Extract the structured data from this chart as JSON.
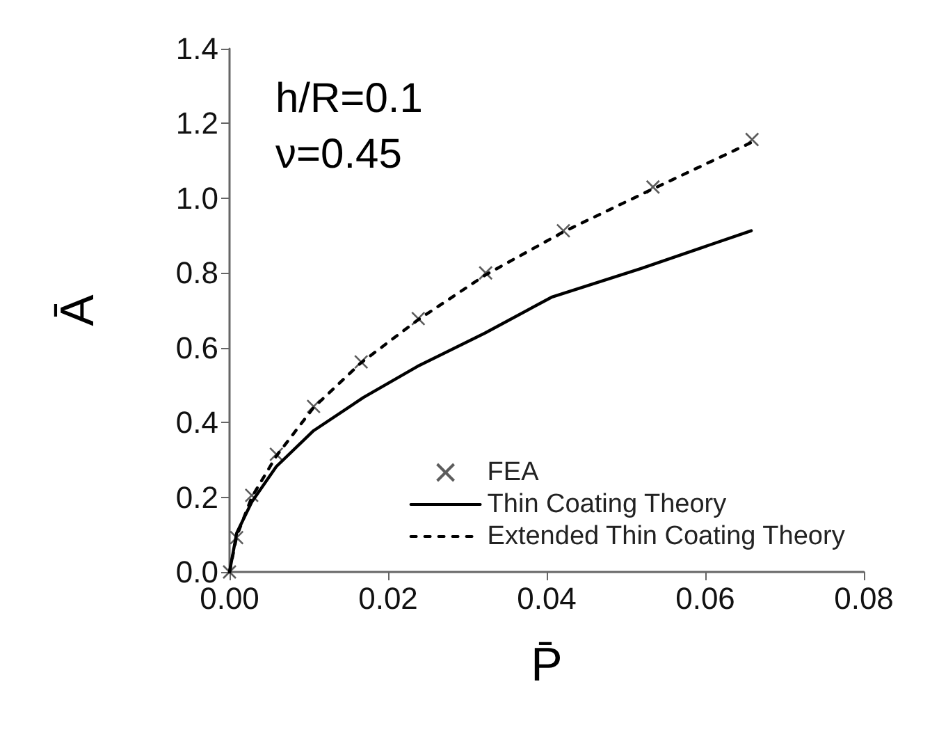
{
  "chart_data": {
    "type": "line",
    "xlabel": "P̄",
    "ylabel": "Ā",
    "annotations": [
      "h/R=0.1",
      "ν=0.45"
    ],
    "xlim": [
      0,
      0.08
    ],
    "xticks": [
      {
        "value": 0,
        "label": "0.00"
      },
      {
        "value": 0.02,
        "label": "0.02"
      },
      {
        "value": 0.04,
        "label": "0.04"
      },
      {
        "value": 0.06,
        "label": "0.06"
      },
      {
        "value": 0.08,
        "label": "0.08"
      }
    ],
    "ylim": [
      0,
      1.4
    ],
    "yticks": [
      {
        "value": 0,
        "label": "0.0"
      },
      {
        "value": 0.2,
        "label": "0.2"
      },
      {
        "value": 0.4,
        "label": "0.4"
      },
      {
        "value": 0.6,
        "label": "0.6"
      },
      {
        "value": 0.8,
        "label": "0.8"
      },
      {
        "value": 1.0,
        "label": "1.0"
      },
      {
        "value": 1.2,
        "label": "1.2"
      },
      {
        "value": 1.4,
        "label": "1.4"
      }
    ],
    "grid": false,
    "legend": "bottom right",
    "series": [
      {
        "name": "FEA",
        "type": "scatter",
        "marker": "cross",
        "color": "#333333",
        "x": [
          0,
          0.0009,
          0.0028,
          0.0059,
          0.0106,
          0.0166,
          0.0238,
          0.0323,
          0.0421,
          0.0534,
          0.0659
        ],
        "values": [
          0,
          0.092,
          0.205,
          0.315,
          0.443,
          0.562,
          0.678,
          0.8,
          0.913,
          1.03,
          1.157
        ]
      },
      {
        "name": "Thin Coating Theory",
        "line_style": "solid",
        "color": "#000000",
        "x": [
          0,
          0.0009,
          0.0028,
          0.0059,
          0.0106,
          0.0169,
          0.0237,
          0.0322,
          0.0406,
          0.0519,
          0.0658
        ],
        "values": [
          0,
          0.104,
          0.187,
          0.282,
          0.378,
          0.467,
          0.55,
          0.639,
          0.735,
          0.812,
          0.913
        ]
      },
      {
        "name": "Extended Thin Coating Theory",
        "line_style": "dashed",
        "color": "#000000",
        "x": [
          0,
          0.0009,
          0.0028,
          0.0059,
          0.0106,
          0.0166,
          0.0238,
          0.0323,
          0.0421,
          0.0534,
          0.0659
        ],
        "values": [
          0,
          0.095,
          0.2,
          0.31,
          0.44,
          0.56,
          0.675,
          0.795,
          0.91,
          1.025,
          1.15
        ]
      }
    ]
  }
}
